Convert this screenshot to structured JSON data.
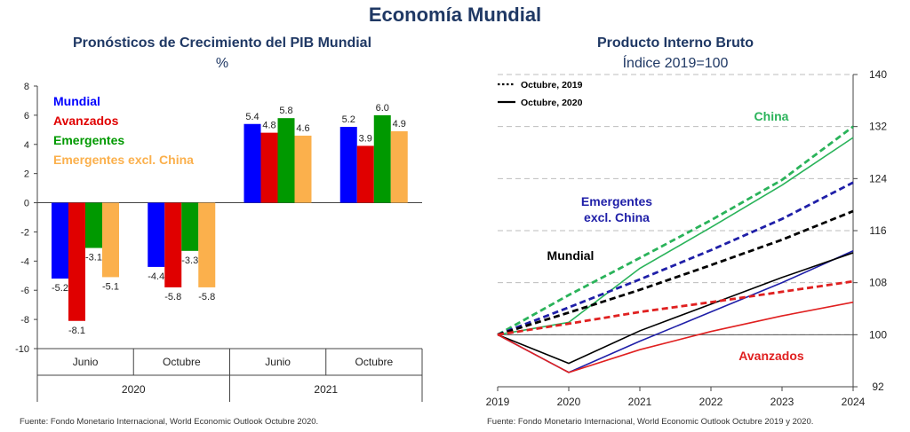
{
  "page": {
    "title": "Economía Mundial"
  },
  "left_chart": {
    "title": "Pronósticos de Crecimiento del PIB Mundial",
    "unit": "%",
    "source": "Fuente: Fondo Monetario Internacional, World Economic Outlook Octubre 2020.",
    "colors": {
      "Mundial": "#0000ff",
      "Avanzados": "#e00000",
      "Emergentes": "#009900",
      "Emergentes excl. China": "#fbb04c"
    }
  },
  "right_chart": {
    "title": "Producto Interno Bruto",
    "unit": "Índice 2019=100",
    "source": "Fuente: Fondo Monetario Internacional, World Economic Outlook Octubre 2019 y 2020."
  },
  "chart_data": [
    {
      "type": "bar",
      "title": "Pronósticos de Crecimiento del PIB Mundial",
      "ylabel": "%",
      "ylim": [
        -10,
        8
      ],
      "yticks": [
        -10,
        -8,
        -6,
        -4,
        -2,
        0,
        2,
        4,
        6,
        8
      ],
      "grid": false,
      "legend_position": "top-left",
      "categories": [
        "Junio",
        "Octubre",
        "Junio",
        "Octubre"
      ],
      "groups": [
        {
          "label": "2020",
          "span": 2
        },
        {
          "label": "2021",
          "span": 2
        }
      ],
      "series": [
        {
          "name": "Mundial",
          "color": "#0000ff",
          "values": [
            -5.2,
            -4.4,
            5.4,
            5.2
          ]
        },
        {
          "name": "Avanzados",
          "color": "#e00000",
          "values": [
            -8.1,
            -5.8,
            4.8,
            3.9
          ]
        },
        {
          "name": "Emergentes",
          "color": "#009900",
          "values": [
            -3.1,
            -3.3,
            5.8,
            6.0
          ]
        },
        {
          "name": "Emergentes excl. China",
          "color": "#fbb04c",
          "values": [
            -5.1,
            -5.8,
            4.6,
            4.9
          ]
        }
      ]
    },
    {
      "type": "line",
      "title": "Producto Interno Bruto",
      "ylabel": "Índice 2019=100",
      "x": [
        2019,
        2020,
        2021,
        2022,
        2023,
        2024
      ],
      "xlim": [
        2019,
        2024
      ],
      "ylim": [
        92,
        140
      ],
      "yticks": [
        92,
        100,
        108,
        116,
        124,
        132,
        140
      ],
      "y_axis_side": "right",
      "grid": "dashed horizontal",
      "legend_position": "top-left",
      "legend": [
        {
          "label": "Octubre, 2019",
          "style": "dotted"
        },
        {
          "label": "Octubre, 2020",
          "style": "solid"
        }
      ],
      "series": [
        {
          "name": "China",
          "color": "#2ab35a",
          "style": "dashed",
          "vintage": "Octubre, 2019",
          "values": [
            100,
            106.1,
            111.8,
            117.6,
            123.8,
            132.0
          ]
        },
        {
          "name": "China",
          "color": "#2ab35a",
          "style": "solid",
          "vintage": "Octubre, 2020",
          "values": [
            100,
            101.9,
            110.2,
            116.5,
            123.0,
            130.3
          ]
        },
        {
          "name": "Emergentes excl. China",
          "color": "#1f1fa8",
          "style": "dashed",
          "vintage": "Octubre, 2019",
          "values": [
            100,
            104.2,
            108.5,
            113.0,
            117.8,
            123.4
          ]
        },
        {
          "name": "Emergentes excl. China",
          "color": "#1f1fa8",
          "style": "solid",
          "vintage": "Octubre, 2020",
          "values": [
            100,
            94.2,
            99.0,
            103.5,
            108.0,
            112.9
          ]
        },
        {
          "name": "Mundial",
          "color": "#000000",
          "style": "dashed",
          "vintage": "Octubre, 2019",
          "values": [
            100,
            103.4,
            106.9,
            110.7,
            114.6,
            119.0
          ]
        },
        {
          "name": "Mundial",
          "color": "#000000",
          "style": "solid",
          "vintage": "Octubre, 2020",
          "values": [
            100,
            95.6,
            100.6,
            104.7,
            108.8,
            112.6
          ]
        },
        {
          "name": "Avanzados",
          "color": "#e02020",
          "style": "dashed",
          "vintage": "Octubre, 2019",
          "values": [
            100,
            101.7,
            103.5,
            105.0,
            106.6,
            108.2
          ]
        },
        {
          "name": "Avanzados",
          "color": "#e02020",
          "style": "solid",
          "vintage": "Octubre, 2020",
          "values": [
            100,
            94.2,
            97.7,
            100.5,
            102.9,
            105.0
          ]
        }
      ],
      "annotations": [
        {
          "text": "China",
          "color": "#2ab35a"
        },
        {
          "text": "Emergentes excl. China",
          "color": "#1f1fa8"
        },
        {
          "text": "Mundial",
          "color": "#000000"
        },
        {
          "text": "Avanzados",
          "color": "#e02020"
        }
      ]
    }
  ]
}
